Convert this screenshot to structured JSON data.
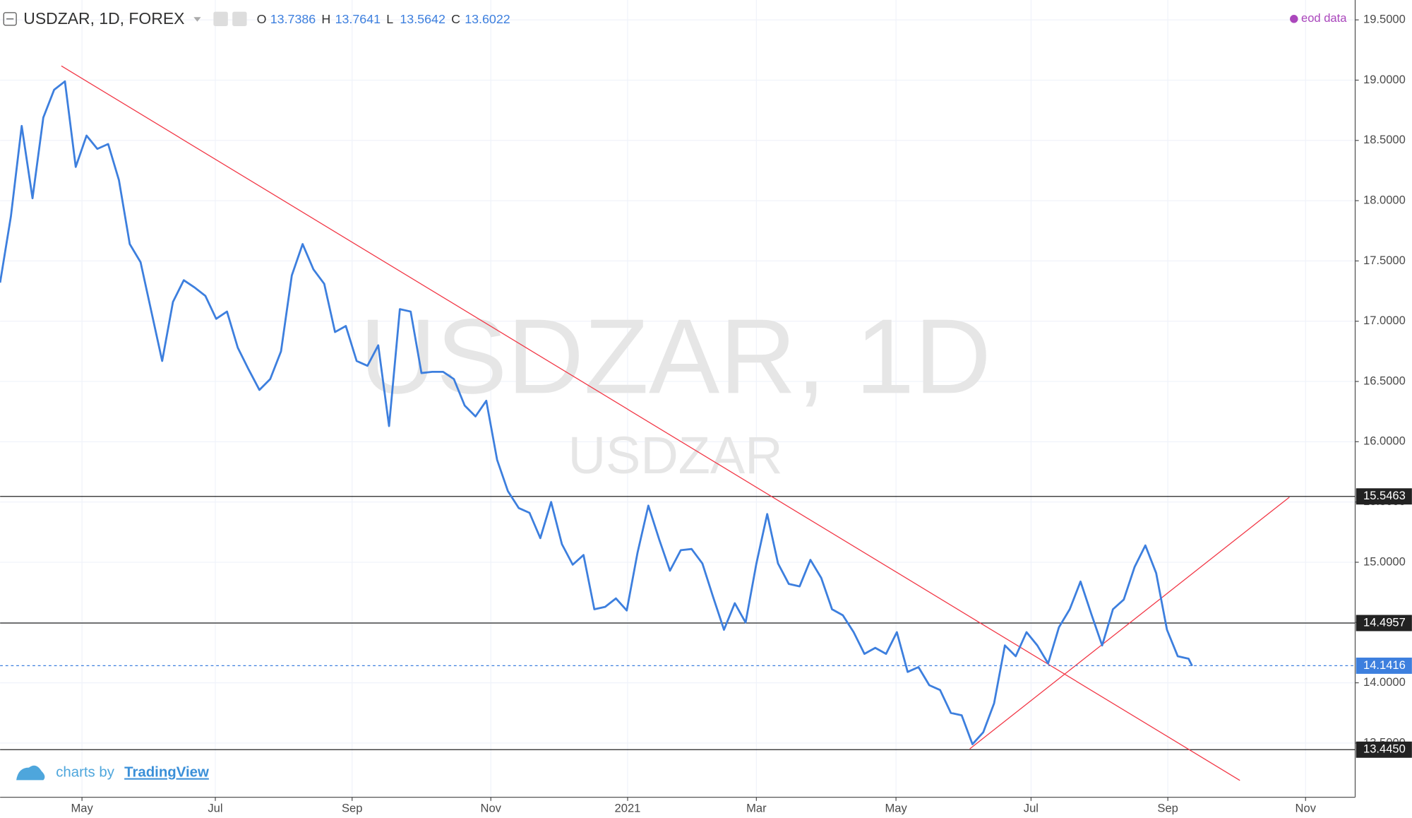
{
  "chart_data": {
    "type": "line",
    "title": "USDZAR, 1D, FOREX",
    "ohlc": [
      {
        "label": "O",
        "value": 13.7386
      },
      {
        "label": "H",
        "value": 13.7641
      },
      {
        "label": "L",
        "value": 13.5642
      },
      {
        "label": "C",
        "value": 13.6022
      }
    ],
    "source_note": "eod data",
    "watermark": "USDZAR, 1D",
    "watermark_sub": "USDZAR",
    "footer": {
      "text": "charts by",
      "link": "TradingView"
    },
    "color": "#3d7fde",
    "x": [
      0,
      1,
      2,
      3,
      4,
      5,
      6,
      7,
      8,
      9,
      10,
      11,
      12,
      13,
      14,
      15,
      16,
      17,
      18,
      19,
      20,
      21,
      22,
      23,
      24,
      25,
      26,
      27,
      28,
      29,
      30,
      31,
      32,
      33,
      34,
      35,
      36,
      37,
      38,
      39,
      40,
      41,
      42,
      43,
      44,
      45,
      46,
      47,
      48,
      49,
      50,
      51,
      52,
      53,
      54,
      55,
      56,
      57,
      58,
      59,
      60,
      61,
      62,
      63,
      64,
      65,
      66,
      67,
      68,
      69,
      70,
      71,
      72,
      73,
      74,
      75,
      76,
      77,
      78,
      79,
      80,
      81,
      82,
      83,
      84,
      85,
      86,
      87,
      88,
      89,
      90,
      91,
      92,
      93,
      94,
      95,
      96,
      97,
      98,
      99,
      100,
      101,
      102,
      103,
      104,
      105,
      106,
      107,
      108,
      109,
      110,
      110.33
    ],
    "values": [
      17.32,
      17.87,
      18.62,
      18.02,
      18.69,
      18.92,
      18.99,
      18.28,
      18.54,
      18.43,
      18.47,
      18.17,
      17.64,
      17.49,
      17.08,
      16.67,
      17.16,
      17.34,
      17.28,
      17.21,
      17.02,
      17.08,
      16.78,
      16.6,
      16.43,
      16.52,
      16.75,
      17.38,
      17.64,
      17.43,
      17.31,
      16.91,
      16.96,
      16.67,
      16.63,
      16.8,
      16.13,
      17.1,
      17.08,
      16.57,
      16.58,
      16.58,
      16.52,
      16.3,
      16.21,
      16.34,
      15.85,
      15.59,
      15.45,
      15.41,
      15.2,
      15.5,
      15.15,
      14.98,
      15.06,
      14.61,
      14.63,
      14.7,
      14.6,
      15.08,
      15.47,
      15.19,
      14.93,
      15.1,
      15.11,
      14.99,
      14.71,
      14.44,
      14.66,
      14.5,
      14.99,
      15.4,
      14.99,
      14.82,
      14.8,
      15.02,
      14.87,
      14.61,
      14.56,
      14.42,
      14.24,
      14.29,
      14.24,
      14.42,
      14.09,
      14.13,
      13.98,
      13.94,
      13.75,
      13.73,
      13.49,
      13.59,
      13.83,
      14.31,
      14.22,
      14.42,
      14.31,
      14.16,
      14.46,
      14.61,
      14.84,
      14.57,
      14.31,
      14.61,
      14.69,
      14.96,
      15.14,
      14.91,
      14.44,
      14.22,
      14.2,
      14.14
    ],
    "xlim": [
      0,
      125.42
    ],
    "xticks": [
      {
        "value": 7.58,
        "label": "May"
      },
      {
        "value": 19.92,
        "label": "Jul"
      },
      {
        "value": 32.58,
        "label": "Sep"
      },
      {
        "value": 45.42,
        "label": "Nov"
      },
      {
        "value": 58.08,
        "label": "2021"
      },
      {
        "value": 70,
        "label": "Mar"
      },
      {
        "value": 82.92,
        "label": "May"
      },
      {
        "value": 95.42,
        "label": "Jul"
      },
      {
        "value": 108.08,
        "label": "Sep"
      },
      {
        "value": 120.83,
        "label": "Nov"
      }
    ],
    "ylim": [
      13.05,
      19.665
    ],
    "yticks": [
      {
        "value": 13.5,
        "label": "13.5000"
      },
      {
        "value": 14,
        "label": "14.0000"
      },
      {
        "value": 14.5,
        "label": "14.5000"
      },
      {
        "value": 15,
        "label": "15.0000"
      },
      {
        "value": 15.5,
        "label": "15.5000"
      },
      {
        "value": 16,
        "label": "16.0000"
      },
      {
        "value": 16.5,
        "label": "16.5000"
      },
      {
        "value": 17,
        "label": "17.0000"
      },
      {
        "value": 17.5,
        "label": "17.5000"
      },
      {
        "value": 18,
        "label": "18.0000"
      },
      {
        "value": 18.5,
        "label": "18.5000"
      },
      {
        "value": 19,
        "label": "19.0000"
      },
      {
        "value": 19.5,
        "label": "19.5000"
      }
    ],
    "grid": true,
    "levels": [
      {
        "value": 15.5463,
        "color": "#222222"
      },
      {
        "value": 14.4957,
        "color": "#222222"
      },
      {
        "value": {
          "value": 13.445,
          "label": "13.4450"
        },
        "color": "#222222"
      }
    ],
    "last_price": {
      "value": 14.1416,
      "color": "#3d7fde"
    },
    "trendlines": [
      {
        "x": [
          5.67,
          114.75
        ],
        "y": [
          19.118,
          13.19
        ],
        "color": "#f23645"
      },
      {
        "x": [
          89.75,
          119.33
        ],
        "y": [
          13.452,
          15.54
        ],
        "color": "#f23645"
      }
    ]
  }
}
